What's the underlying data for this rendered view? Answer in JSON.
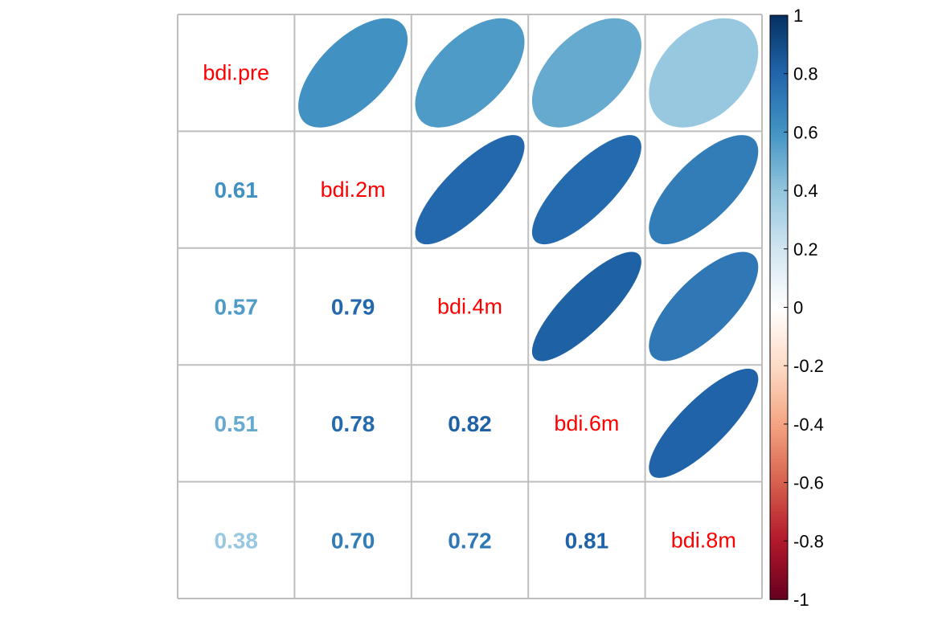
{
  "chart_data": {
    "type": "heatmap",
    "variables": [
      "bdi.pre",
      "bdi.2m",
      "bdi.4m",
      "bdi.6m",
      "bdi.8m"
    ],
    "matrix": [
      [
        1.0,
        0.61,
        0.57,
        0.51,
        0.38
      ],
      [
        0.61,
        1.0,
        0.79,
        0.78,
        0.7
      ],
      [
        0.57,
        0.79,
        1.0,
        0.82,
        0.72
      ],
      [
        0.51,
        0.78,
        0.82,
        1.0,
        0.81
      ],
      [
        0.38,
        0.7,
        0.72,
        0.81,
        1.0
      ]
    ],
    "lower_labels": [
      [
        "",
        "",
        "",
        ""
      ],
      [
        "0.61",
        "",
        "",
        ""
      ],
      [
        "0.57",
        "0.79",
        "",
        ""
      ],
      [
        "0.51",
        "0.78",
        "0.82",
        ""
      ],
      [
        "0.38",
        "0.70",
        "0.72",
        "0.81"
      ]
    ],
    "upper": "ellipse",
    "lower": "number",
    "diagonal": "variable names",
    "colorbar": {
      "range": [
        -1,
        1
      ],
      "ticks": [
        "1",
        "0.8",
        "0.6",
        "0.4",
        "0.2",
        "0",
        "-0.2",
        "-0.4",
        "-0.6",
        "-0.8",
        "-1"
      ]
    },
    "label_color": "#FF0000",
    "grid_color": "#BEBEBE",
    "palette": [
      "#67001F",
      "#B2182B",
      "#D6604D",
      "#F4A582",
      "#FDDBC7",
      "#FFFFFF",
      "#D1E5F0",
      "#92C5DE",
      "#4393C3",
      "#2166AC",
      "#053061"
    ]
  }
}
